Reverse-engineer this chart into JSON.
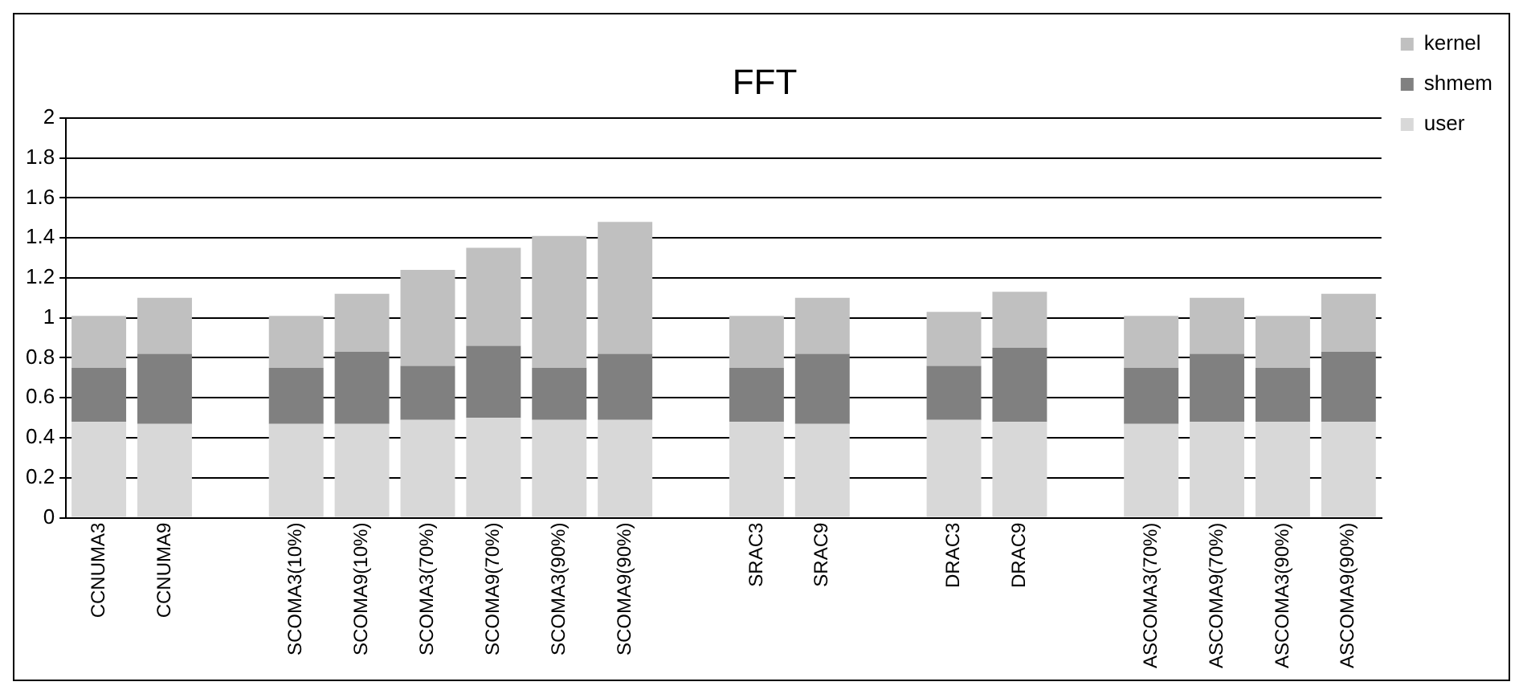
{
  "chart_data": {
    "type": "bar",
    "title": "FFT",
    "stacked": true,
    "categories": [
      "CCNUMA3",
      "CCNUMA9",
      null,
      "SCOMA3(10%)",
      "SCOMA9(10%)",
      "SCOMA3(70%)",
      "SCOMA9(70%)",
      "SCOMA3(90%)",
      "SCOMA9(90%)",
      null,
      "SRAC3",
      "SRAC9",
      null,
      "DRAC3",
      "DRAC9",
      null,
      "ASCOMA3(70%)",
      "ASCOMA9(70%)",
      "ASCOMA3(90%)",
      "ASCOMA9(90%)"
    ],
    "series": [
      {
        "name": "user",
        "color": "#d8d8d8",
        "values": [
          0.48,
          0.47,
          null,
          0.47,
          0.47,
          0.49,
          0.5,
          0.49,
          0.49,
          null,
          0.48,
          0.47,
          null,
          0.49,
          0.48,
          null,
          0.47,
          0.48,
          0.48,
          0.48
        ]
      },
      {
        "name": "shmem",
        "color": "#808080",
        "values": [
          0.27,
          0.35,
          null,
          0.28,
          0.36,
          0.27,
          0.36,
          0.26,
          0.33,
          null,
          0.27,
          0.35,
          null,
          0.27,
          0.37,
          null,
          0.28,
          0.34,
          0.27,
          0.35
        ]
      },
      {
        "name": "kernel",
        "color": "#c0c0c0",
        "values": [
          0.26,
          0.28,
          null,
          0.26,
          0.29,
          0.48,
          0.49,
          0.66,
          0.66,
          null,
          0.26,
          0.28,
          null,
          0.27,
          0.28,
          null,
          0.26,
          0.28,
          0.26,
          0.29
        ]
      }
    ],
    "ylim": [
      0,
      2
    ],
    "yticks": [
      0,
      0.2,
      0.4,
      0.6,
      0.8,
      1,
      1.2,
      1.4,
      1.6,
      1.8,
      2
    ],
    "grid": "y",
    "legend": "top right"
  }
}
